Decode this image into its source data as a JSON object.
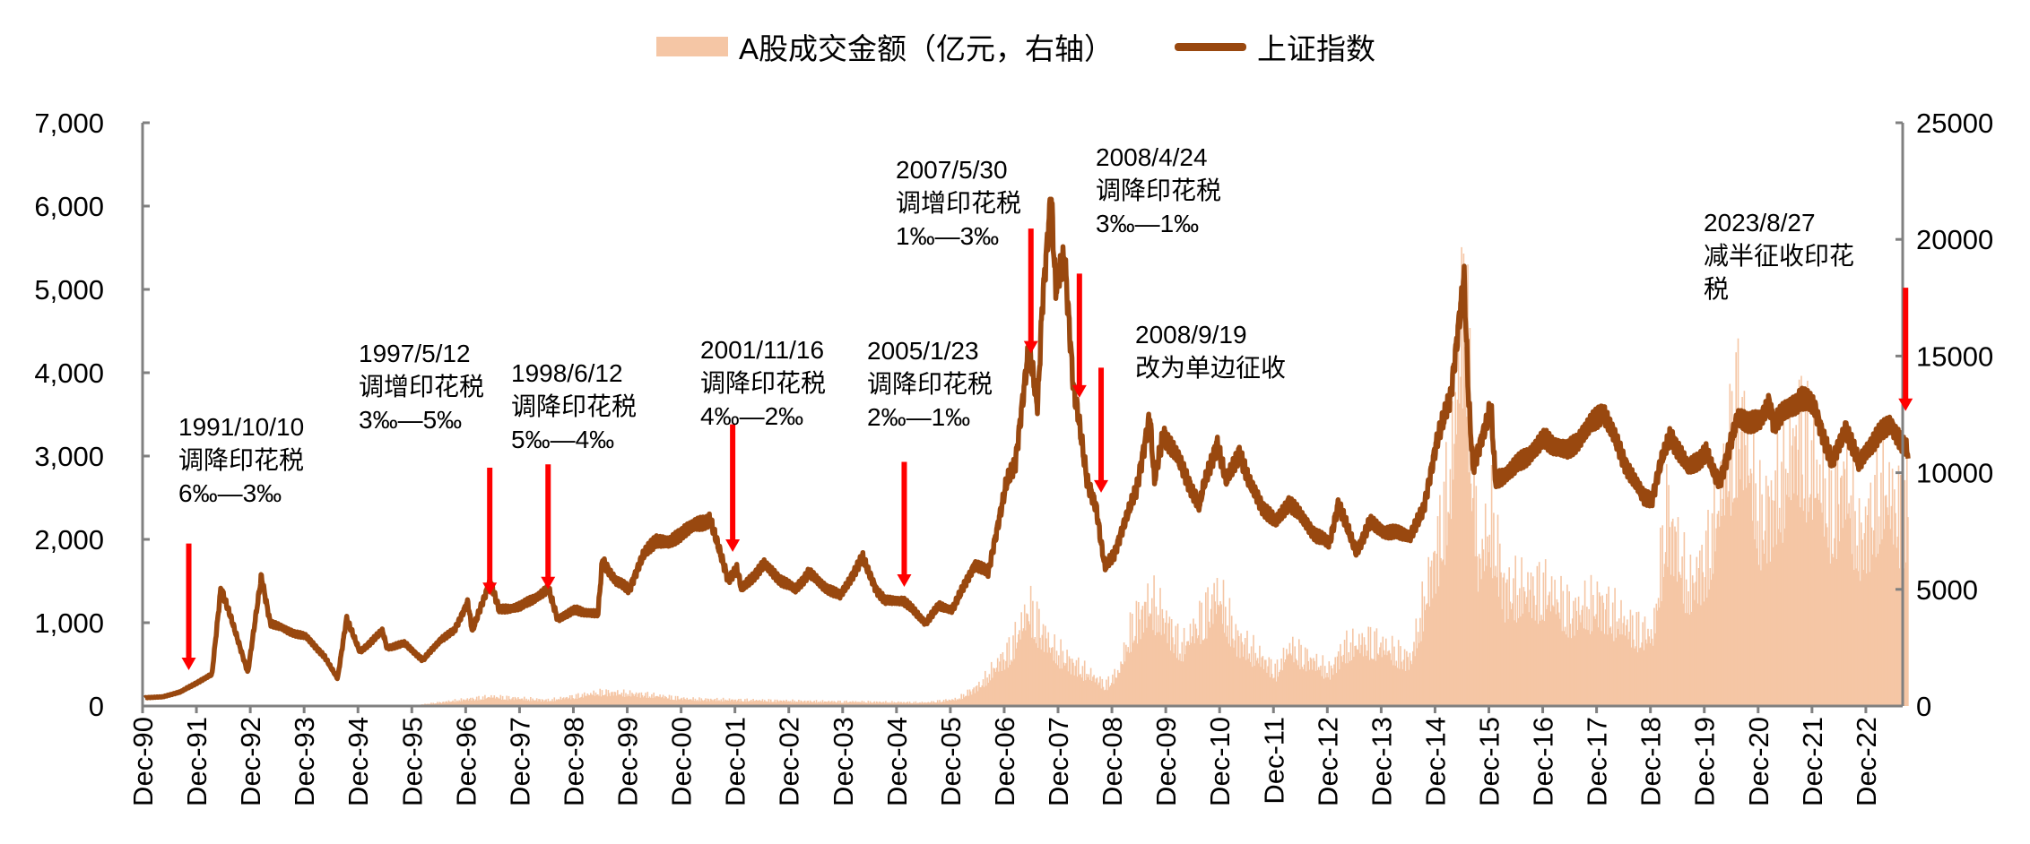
{
  "legend": {
    "bars_label": "A股成交金额（亿元，右轴）",
    "line_label": "上证指数"
  },
  "chart_data": {
    "type": "bar+line",
    "colors": {
      "turnover": "#F5C6A5",
      "index": "#99480F",
      "arrow": "#FF0000",
      "axis": "#808080"
    },
    "left_axis": {
      "ylim": [
        0,
        7000
      ],
      "ticks": [
        "0",
        "1,000",
        "2,000",
        "3,000",
        "4,000",
        "5,000",
        "6,000",
        "7,000"
      ]
    },
    "right_axis": {
      "ylim": [
        0,
        25000
      ],
      "ticks": [
        "0",
        "5000",
        "10000",
        "15000",
        "20000",
        "25000"
      ]
    },
    "x_ticks": [
      "Dec-90",
      "Dec-91",
      "Dec-92",
      "Dec-93",
      "Dec-94",
      "Dec-95",
      "Dec-96",
      "Dec-97",
      "Dec-98",
      "Dec-99",
      "Dec-00",
      "Dec-01",
      "Dec-02",
      "Dec-03",
      "Dec-04",
      "Dec-05",
      "Dec-06",
      "Dec-07",
      "Dec-08",
      "Dec-09",
      "Dec-10",
      "Dec-11",
      "Dec-12",
      "Dec-13",
      "Dec-14",
      "Dec-15",
      "Dec-16",
      "Dec-17",
      "Dec-18",
      "Dec-19",
      "Dec-20",
      "Dec-21",
      "Dec-22"
    ],
    "grid": false,
    "legend_position": "top",
    "series": [
      {
        "name": "上证指数",
        "axis": "left",
        "type": "line",
        "points": [
          [
            "1990-12",
            100
          ],
          [
            "1991-04",
            110
          ],
          [
            "1991-08",
            170
          ],
          [
            "1991-12",
            290
          ],
          [
            "1992-03",
            380
          ],
          [
            "1992-05",
            1420
          ],
          [
            "1992-07",
            1100
          ],
          [
            "1992-11",
            400
          ],
          [
            "1993-02",
            1550
          ],
          [
            "1993-04",
            1000
          ],
          [
            "1993-08",
            900
          ],
          [
            "1993-12",
            830
          ],
          [
            "1994-04",
            600
          ],
          [
            "1994-07",
            330
          ],
          [
            "1994-09",
            1050
          ],
          [
            "1994-12",
            650
          ],
          [
            "1995-05",
            900
          ],
          [
            "1995-06",
            700
          ],
          [
            "1995-10",
            750
          ],
          [
            "1996-02",
            550
          ],
          [
            "1996-06",
            800
          ],
          [
            "1996-09",
            900
          ],
          [
            "1996-12",
            1250
          ],
          [
            "1997-01",
            900
          ],
          [
            "1997-05",
            1500
          ],
          [
            "1997-07",
            1150
          ],
          [
            "1997-12",
            1200
          ],
          [
            "1998-06",
            1400
          ],
          [
            "1998-08",
            1050
          ],
          [
            "1998-12",
            1150
          ],
          [
            "1999-05",
            1100
          ],
          [
            "1999-06",
            1750
          ],
          [
            "1999-09",
            1500
          ],
          [
            "1999-12",
            1400
          ],
          [
            "2000-03",
            1800
          ],
          [
            "2000-06",
            2000
          ],
          [
            "2000-09",
            1950
          ],
          [
            "2000-12",
            2100
          ],
          [
            "2001-06",
            2245
          ],
          [
            "2001-10",
            1520
          ],
          [
            "2001-12",
            1650
          ],
          [
            "2002-01",
            1400
          ],
          [
            "2002-06",
            1700
          ],
          [
            "2002-10",
            1500
          ],
          [
            "2003-01",
            1400
          ],
          [
            "2003-04",
            1600
          ],
          [
            "2003-07",
            1450
          ],
          [
            "2003-11",
            1320
          ],
          [
            "2004-04",
            1780
          ],
          [
            "2004-07",
            1400
          ],
          [
            "2004-09",
            1260
          ],
          [
            "2005-01",
            1270
          ],
          [
            "2005-06",
            1000
          ],
          [
            "2005-09",
            1200
          ],
          [
            "2005-12",
            1160
          ],
          [
            "2006-05",
            1700
          ],
          [
            "2006-08",
            1600
          ],
          [
            "2006-12",
            2675
          ],
          [
            "2007-02",
            2900
          ],
          [
            "2007-05",
            4300
          ],
          [
            "2007-07",
            3600
          ],
          [
            "2007-08",
            4800
          ],
          [
            "2007-10",
            6124
          ],
          [
            "2007-11",
            5000
          ],
          [
            "2008-01",
            5400
          ],
          [
            "2008-03",
            3800
          ],
          [
            "2008-04",
            3500
          ],
          [
            "2008-06",
            2700
          ],
          [
            "2008-08",
            2400
          ],
          [
            "2008-09",
            2000
          ],
          [
            "2008-10",
            1664
          ],
          [
            "2008-12",
            1820
          ],
          [
            "2009-03",
            2300
          ],
          [
            "2009-05",
            2600
          ],
          [
            "2009-08",
            3478
          ],
          [
            "2009-09",
            2700
          ],
          [
            "2009-11",
            3277
          ],
          [
            "2010-02",
            3000
          ],
          [
            "2010-07",
            2400
          ],
          [
            "2010-08",
            2650
          ],
          [
            "2010-11",
            3150
          ],
          [
            "2011-01",
            2700
          ],
          [
            "2011-04",
            3050
          ],
          [
            "2011-06",
            2700
          ],
          [
            "2011-09",
            2400
          ],
          [
            "2011-12",
            2200
          ],
          [
            "2012-03",
            2450
          ],
          [
            "2012-06",
            2250
          ],
          [
            "2012-09",
            2050
          ],
          [
            "2012-12",
            1950
          ],
          [
            "2013-02",
            2430
          ],
          [
            "2013-06",
            1850
          ],
          [
            "2013-09",
            2200
          ],
          [
            "2013-12",
            2100
          ],
          [
            "2014-06",
            2050
          ],
          [
            "2014-09",
            2350
          ],
          [
            "2014-12",
            3200
          ],
          [
            "2015-03",
            3700
          ],
          [
            "2015-06",
            5166
          ],
          [
            "2015-07",
            3700
          ],
          [
            "2015-08",
            2850
          ],
          [
            "2015-12",
            3600
          ],
          [
            "2016-01",
            2700
          ],
          [
            "2016-06",
            2900
          ],
          [
            "2016-12",
            3200
          ],
          [
            "2017-05",
            3050
          ],
          [
            "2017-11",
            3420
          ],
          [
            "2018-01",
            3550
          ],
          [
            "2018-06",
            2900
          ],
          [
            "2018-10",
            2500
          ],
          [
            "2018-12",
            2500
          ],
          [
            "2019-02",
            2950
          ],
          [
            "2019-04",
            3250
          ],
          [
            "2019-08",
            2850
          ],
          [
            "2019-12",
            3050
          ],
          [
            "2020-02",
            2750
          ],
          [
            "2020-03",
            2700
          ],
          [
            "2020-07",
            3450
          ],
          [
            "2020-12",
            3400
          ],
          [
            "2021-02",
            3650
          ],
          [
            "2021-03",
            3400
          ],
          [
            "2021-09",
            3700
          ],
          [
            "2021-12",
            3600
          ],
          [
            "2022-04",
            2900
          ],
          [
            "2022-07",
            3350
          ],
          [
            "2022-10",
            2900
          ],
          [
            "2022-12",
            3100
          ],
          [
            "2023-05",
            3400
          ],
          [
            "2023-08",
            3100
          ],
          [
            "2023-09",
            3050
          ]
        ]
      },
      {
        "name": "A股成交金额（亿元，右轴）",
        "axis": "right",
        "type": "bar",
        "points": [
          [
            "1990-12",
            0
          ],
          [
            "1995-12",
            30
          ],
          [
            "1996-12",
            300
          ],
          [
            "1997-05",
            400
          ],
          [
            "1998-06",
            250
          ],
          [
            "1999-06",
            600
          ],
          [
            "2000-03",
            500
          ],
          [
            "2001-01",
            300
          ],
          [
            "2003-06",
            200
          ],
          [
            "2005-06",
            150
          ],
          [
            "2006-01",
            300
          ],
          [
            "2006-06",
            900
          ],
          [
            "2007-01",
            2500
          ],
          [
            "2007-05",
            4200
          ],
          [
            "2007-10",
            2500
          ],
          [
            "2008-03",
            1800
          ],
          [
            "2008-10",
            900
          ],
          [
            "2009-01",
            1500
          ],
          [
            "2009-04",
            3500
          ],
          [
            "2009-08",
            4500
          ],
          [
            "2009-11",
            3800
          ],
          [
            "2010-03",
            2500
          ],
          [
            "2010-11",
            4800
          ],
          [
            "2011-03",
            3000
          ],
          [
            "2011-12",
            1500
          ],
          [
            "2012-03",
            2500
          ],
          [
            "2012-12",
            1500
          ],
          [
            "2013-03",
            2500
          ],
          [
            "2013-09",
            2800
          ],
          [
            "2014-06",
            2000
          ],
          [
            "2014-12",
            7000
          ],
          [
            "2015-03",
            10000
          ],
          [
            "2015-06",
            18000
          ],
          [
            "2015-09",
            6000
          ],
          [
            "2015-12",
            8000
          ],
          [
            "2016-03",
            5000
          ],
          [
            "2016-12",
            5000
          ],
          [
            "2017-06",
            4000
          ],
          [
            "2017-12",
            4500
          ],
          [
            "2018-06",
            3500
          ],
          [
            "2018-12",
            3000
          ],
          [
            "2019-03",
            8500
          ],
          [
            "2019-08",
            5000
          ],
          [
            "2019-12",
            6500
          ],
          [
            "2020-03",
            9000
          ],
          [
            "2020-07",
            13000
          ],
          [
            "2020-12",
            8000
          ],
          [
            "2021-03",
            9000
          ],
          [
            "2021-09",
            12000
          ],
          [
            "2021-12",
            10000
          ],
          [
            "2022-04",
            8500
          ],
          [
            "2022-07",
            10000
          ],
          [
            "2022-10",
            7000
          ],
          [
            "2023-03",
            9500
          ],
          [
            "2023-08",
            8000
          ],
          [
            "2023-09",
            10000
          ]
        ]
      }
    ],
    "annotations": [
      {
        "date": "1991-10-10",
        "lines": [
          "1991/10/10",
          "调降印花税",
          "6‰—3‰"
        ],
        "arrow_from": 1950,
        "arrow_to": 430
      },
      {
        "date": "1997-05-12",
        "lines": [
          "1997/5/12",
          "调增印花税",
          "3‰—5‰"
        ],
        "arrow_from": 2860,
        "arrow_to": 1330
      },
      {
        "date": "1998-06-12",
        "lines": [
          "1998/6/12",
          "调降印花税",
          "5‰—4‰"
        ],
        "arrow_from": 2900,
        "arrow_to": 1400
      },
      {
        "date": "2001-11-16",
        "lines": [
          "2001/11/16",
          "调降印花税",
          "4‰—2‰"
        ],
        "arrow_from": 3380,
        "arrow_to": 1850
      },
      {
        "date": "2005-01-23",
        "lines": [
          "2005/1/23",
          "调降印花税",
          "2‰—1‰"
        ],
        "arrow_from": 2930,
        "arrow_to": 1430
      },
      {
        "date": "2007-05-30",
        "lines": [
          "2007/5/30",
          "调增印花税",
          "1‰—3‰"
        ],
        "arrow_from": 5730,
        "arrow_to": 4230
      },
      {
        "date": "2008-04-24",
        "lines": [
          "2008/4/24",
          "调降印花税",
          "3‰—1‰"
        ],
        "arrow_from": 5190,
        "arrow_to": 3700
      },
      {
        "date": "2008-09-19",
        "lines": [
          "2008/9/19",
          "改为单边征收"
        ],
        "arrow_from": 4060,
        "arrow_to": 2560
      },
      {
        "date": "2023-08-27",
        "lines": [
          "2023/8/27",
          "减半征收印花",
          "税"
        ],
        "arrow_from": 5020,
        "arrow_to": 3540
      }
    ]
  }
}
